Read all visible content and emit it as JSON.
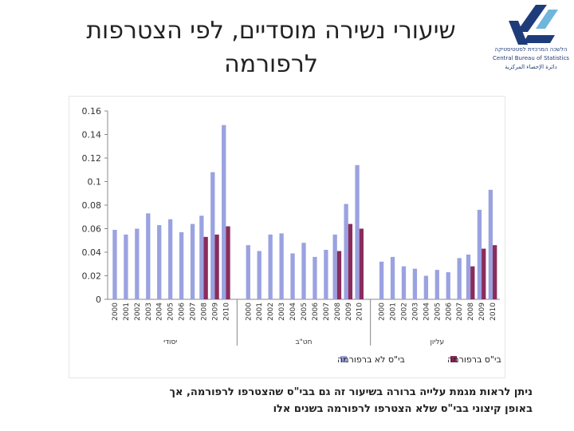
{
  "title": "שיעורי נשירה מוסדיים, לפי הצטרפות לרפורמה",
  "logo": {
    "line1": "הלשכה המרכזית לסטטיסטיקה",
    "line2": "Central Bureau of Statistics",
    "line3": "دائرة الإحصاء المركزية",
    "colors": {
      "blue": "#1f3c7a",
      "light": "#6fb5dc"
    }
  },
  "note": {
    "line1": "ניתן לראות מגמת עלייה ברורה בשיעור זה גם בבי\"ס שהצטרפו לרפורמה, אך",
    "line2": "באופן קיצוני בבי\"ס שלא הצטרפו לרפורמה בשנים אלו"
  },
  "chart_data": {
    "type": "bar",
    "ylim": [
      0,
      0.16
    ],
    "yticks": [
      "0",
      "0.02",
      "0.04",
      "0.06",
      "0.08",
      "0.1",
      "0.12",
      "0.14",
      "0.16"
    ],
    "grid": false,
    "legend_position": "bottom",
    "years": [
      "2000",
      "2001",
      "2002",
      "2003",
      "2004",
      "2005",
      "2006",
      "2007",
      "2008",
      "2009",
      "2010"
    ],
    "groups": [
      {
        "label": "יסודי",
        "not_joined": [
          0.059,
          0.055,
          0.06,
          0.073,
          0.063,
          0.068,
          0.057,
          0.064,
          0.071,
          0.108,
          0.148
        ],
        "joined": [
          null,
          null,
          null,
          null,
          null,
          null,
          null,
          null,
          0.053,
          0.055,
          0.062
        ]
      },
      {
        "label": "חט\"ב",
        "not_joined": [
          0.046,
          0.041,
          0.055,
          0.056,
          0.039,
          0.048,
          0.036,
          0.042,
          0.055,
          0.081,
          0.114
        ],
        "joined": [
          null,
          null,
          null,
          null,
          null,
          null,
          null,
          null,
          0.041,
          0.064,
          0.06
        ]
      },
      {
        "label": "עליון",
        "not_joined": [
          0.032,
          0.036,
          0.028,
          0.026,
          0.02,
          0.025,
          0.023,
          0.035,
          0.038,
          0.076,
          0.093
        ],
        "joined": [
          null,
          null,
          null,
          null,
          null,
          null,
          null,
          null,
          0.028,
          0.043,
          0.046
        ]
      }
    ],
    "series": [
      {
        "name": "בי\"ס לא ברפורמה",
        "key": "not_joined",
        "color": "#9aa2e0"
      },
      {
        "name": "בי\"ס ברפורמה",
        "key": "joined",
        "color": "#8a2c5c"
      }
    ]
  }
}
